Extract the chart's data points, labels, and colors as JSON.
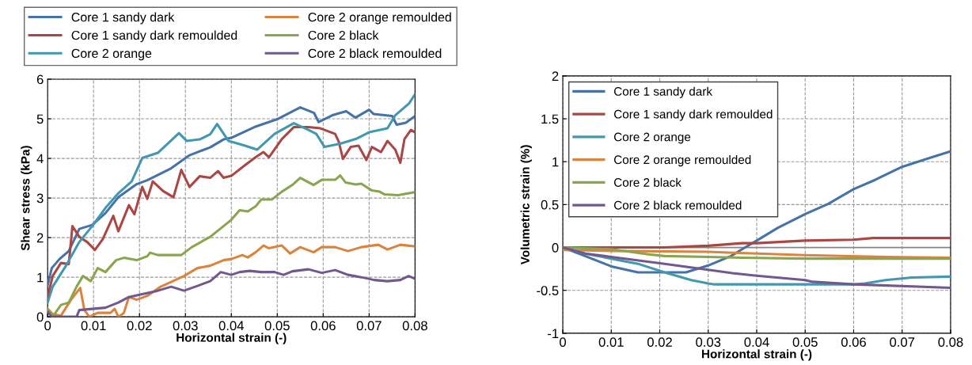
{
  "chart_data": [
    {
      "type": "line",
      "xlabel": "Horizontal strain (-)",
      "ylabel": "Shear stress (kPa)",
      "xlim": [
        0,
        0.08
      ],
      "ylim": [
        0,
        6
      ],
      "xticks": [
        0,
        0.01,
        0.02,
        0.03,
        0.04,
        0.05,
        0.06,
        0.07,
        0.08
      ],
      "yticks": [
        0,
        1,
        2,
        3,
        4,
        5,
        6
      ],
      "grid": true,
      "legend": "top",
      "marker": "none",
      "line_style": "solid",
      "series": [
        {
          "name": "Core 1 sandy dark",
          "color": "#4572a7",
          "x": [
            0,
            0.0009,
            0.0026,
            0.0046,
            0.0069,
            0.0097,
            0.0126,
            0.0154,
            0.0194,
            0.0217,
            0.0269,
            0.0309,
            0.0354,
            0.0383,
            0.04,
            0.045,
            0.05,
            0.055,
            0.058,
            0.059,
            0.062,
            0.065,
            0.067,
            0.07,
            0.071,
            0.075,
            0.076,
            0.078,
            0.08
          ],
          "values": [
            0.8,
            1.23,
            1.46,
            1.66,
            2.22,
            2.32,
            2.62,
            3.02,
            3.35,
            3.45,
            3.75,
            4.08,
            4.28,
            4.48,
            4.52,
            4.79,
            4.99,
            5.29,
            5.15,
            4.92,
            5.09,
            5.19,
            5.03,
            5.23,
            5.12,
            5.07,
            4.85,
            4.9,
            5.07
          ]
        },
        {
          "name": "Core 1 sandy dark remoulded",
          "color": "#aa4643",
          "x": [
            0,
            0.0011,
            0.0029,
            0.0046,
            0.0054,
            0.0069,
            0.0086,
            0.0103,
            0.012,
            0.0143,
            0.0154,
            0.0177,
            0.0189,
            0.0206,
            0.0217,
            0.0229,
            0.0251,
            0.0274,
            0.0291,
            0.0309,
            0.0331,
            0.0354,
            0.0371,
            0.0383,
            0.04,
            0.043,
            0.0453,
            0.047,
            0.0482,
            0.051,
            0.0536,
            0.0568,
            0.0594,
            0.0626,
            0.0634,
            0.0643,
            0.066,
            0.0677,
            0.0694,
            0.0706,
            0.0726,
            0.074,
            0.0757,
            0.0768,
            0.0777,
            0.0791,
            0.08
          ],
          "values": [
            0.5,
            1.03,
            1.36,
            1.33,
            2.29,
            2.02,
            1.89,
            1.69,
            1.96,
            2.55,
            2.16,
            2.82,
            2.59,
            3.28,
            2.98,
            3.42,
            3.18,
            3.02,
            3.71,
            3.28,
            3.55,
            3.51,
            3.68,
            3.51,
            3.56,
            3.83,
            4.03,
            4.16,
            4.03,
            4.49,
            4.79,
            4.79,
            4.76,
            4.62,
            4.42,
            3.99,
            4.29,
            4.32,
            3.96,
            4.29,
            4.16,
            4.44,
            4.22,
            3.89,
            4.49,
            4.72,
            4.66
          ]
        },
        {
          "name": "Core 2 orange",
          "color": "#4198af",
          "x": [
            0,
            0.0011,
            0.004,
            0.0069,
            0.0097,
            0.0126,
            0.0154,
            0.0183,
            0.0206,
            0.024,
            0.0286,
            0.0303,
            0.0331,
            0.0354,
            0.0369,
            0.0394,
            0.043,
            0.0456,
            0.0494,
            0.0536,
            0.0568,
            0.0585,
            0.0603,
            0.0637,
            0.0671,
            0.07,
            0.074,
            0.0757,
            0.0787,
            0.08
          ],
          "values": [
            0.36,
            0.76,
            1.29,
            1.89,
            2.29,
            2.75,
            3.12,
            3.42,
            4.01,
            4.14,
            4.64,
            4.44,
            4.48,
            4.61,
            4.87,
            4.44,
            4.32,
            4.22,
            4.62,
            4.89,
            4.72,
            4.62,
            4.29,
            4.37,
            4.49,
            4.66,
            4.76,
            5.09,
            5.39,
            5.62
          ]
        },
        {
          "name": "Core 2 orange remoulded",
          "color": "#db843d",
          "x": [
            0,
            0.0011,
            0.0029,
            0.0051,
            0.0069,
            0.0071,
            0.008,
            0.0091,
            0.0109,
            0.0137,
            0.0146,
            0.0154,
            0.0166,
            0.0177,
            0.0194,
            0.0217,
            0.0246,
            0.0297,
            0.0326,
            0.0354,
            0.0383,
            0.04,
            0.0424,
            0.0436,
            0.0453,
            0.047,
            0.0482,
            0.051,
            0.0528,
            0.055,
            0.0579,
            0.0597,
            0.0626,
            0.0654,
            0.0683,
            0.072,
            0.074,
            0.0768,
            0.08
          ],
          "values": [
            0.2,
            0.07,
            0.03,
            0.43,
            0.7,
            0.73,
            0.17,
            0,
            0.1,
            0.1,
            0.2,
            0,
            0.1,
            0.5,
            0.43,
            0.53,
            0.76,
            1.03,
            1.23,
            1.29,
            1.43,
            1.46,
            1.56,
            1.5,
            1.63,
            1.8,
            1.73,
            1.8,
            1.6,
            1.76,
            1.63,
            1.76,
            1.76,
            1.66,
            1.76,
            1.82,
            1.7,
            1.82,
            1.78
          ]
        },
        {
          "name": "Core 2 black",
          "color": "#89a54e",
          "x": [
            0,
            0.0011,
            0.0029,
            0.0046,
            0.0063,
            0.0077,
            0.0094,
            0.0109,
            0.0126,
            0.0149,
            0.0166,
            0.0194,
            0.0217,
            0.0223,
            0.024,
            0.0291,
            0.0314,
            0.0354,
            0.0383,
            0.04,
            0.0418,
            0.0436,
            0.0453,
            0.0465,
            0.0488,
            0.051,
            0.0533,
            0.055,
            0.0579,
            0.0597,
            0.0626,
            0.0637,
            0.0649,
            0.0671,
            0.0683,
            0.0706,
            0.0723,
            0.0734,
            0.0763,
            0.08
          ],
          "values": [
            0.2,
            0,
            0.3,
            0.36,
            0.76,
            1.03,
            0.9,
            1.23,
            1.13,
            1.43,
            1.49,
            1.43,
            1.53,
            1.62,
            1.56,
            1.56,
            1.76,
            2.02,
            2.29,
            2.45,
            2.69,
            2.66,
            2.79,
            2.96,
            2.96,
            3.16,
            3.33,
            3.51,
            3.33,
            3.46,
            3.46,
            3.57,
            3.39,
            3.34,
            3.36,
            3.19,
            3.16,
            3.09,
            3.07,
            3.15
          ]
        },
        {
          "name": "Core 2 black remoulded",
          "color": "#71588f",
          "x": [
            0,
            0.0009,
            0.0063,
            0.0069,
            0.0097,
            0.0126,
            0.0154,
            0.0177,
            0.02,
            0.024,
            0.0269,
            0.0297,
            0.0331,
            0.0354,
            0.0377,
            0.04,
            0.0418,
            0.044,
            0.0465,
            0.0494,
            0.0514,
            0.0533,
            0.0568,
            0.0597,
            0.0626,
            0.0654,
            0.0683,
            0.0711,
            0.074,
            0.0768,
            0.0786,
            0.08
          ],
          "values": [
            0.13,
            0,
            0,
            0.17,
            0.2,
            0.23,
            0.36,
            0.5,
            0.56,
            0.66,
            0.76,
            0.66,
            0.8,
            0.9,
            1.13,
            1.06,
            1.13,
            1.16,
            1.13,
            1.13,
            1.06,
            1.15,
            1.2,
            1.11,
            1.18,
            1.06,
            1.0,
            0.93,
            0.9,
            0.93,
            1.03,
            0.96
          ]
        }
      ]
    },
    {
      "type": "line",
      "xlabel": "Horizontal strain (-)",
      "ylabel": "Volumetric strain (%)",
      "xlim": [
        0,
        0.08
      ],
      "ylim": [
        -1,
        2
      ],
      "xticks": [
        0,
        0.01,
        0.02,
        0.03,
        0.04,
        0.05,
        0.06,
        0.07,
        0.08
      ],
      "yticks": [
        -1,
        -0.5,
        0,
        0.5,
        1,
        1.5,
        2
      ],
      "grid": true,
      "legend": "top left",
      "marker": "none",
      "line_style": "solid",
      "ref_lines": [
        {
          "axis": "y",
          "value": 0,
          "color": "#868686"
        }
      ],
      "series": [
        {
          "name": "Core 1 sandy dark",
          "color": "#4572a7",
          "x": [
            0,
            0.0046,
            0.01,
            0.0155,
            0.0254,
            0.03,
            0.0347,
            0.037,
            0.04,
            0.0444,
            0.05,
            0.0548,
            0.06,
            0.0645,
            0.07,
            0.0749,
            0.08
          ],
          "values": [
            0,
            -0.1,
            -0.22,
            -0.29,
            -0.29,
            -0.21,
            -0.1,
            -0.02,
            0.08,
            0.23,
            0.39,
            0.51,
            0.68,
            0.79,
            0.94,
            1.03,
            1.12
          ]
        },
        {
          "name": "Core 1 sandy dark remoulded",
          "color": "#aa4643",
          "x": [
            0,
            0.021,
            0.03,
            0.037,
            0.04,
            0.05,
            0.06,
            0.064,
            0.08
          ],
          "values": [
            0,
            0,
            0.02,
            0.05,
            0.05,
            0.08,
            0.09,
            0.11,
            0.11
          ]
        },
        {
          "name": "Core 2 orange",
          "color": "#4198af",
          "x": [
            0,
            0.0046,
            0.01,
            0.0155,
            0.021,
            0.0265,
            0.03,
            0.0313,
            0.06,
            0.0623,
            0.0666,
            0.072,
            0.08
          ],
          "values": [
            0,
            -0.07,
            -0.13,
            -0.19,
            -0.29,
            -0.38,
            -0.42,
            -0.43,
            -0.43,
            -0.42,
            -0.38,
            -0.35,
            -0.34
          ]
        },
        {
          "name": "Core 2 orange remoulded",
          "color": "#db843d",
          "x": [
            0,
            0.01,
            0.03,
            0.034,
            0.05,
            0.0667,
            0.08
          ],
          "values": [
            -0.03,
            -0.04,
            -0.05,
            -0.06,
            -0.09,
            -0.11,
            -0.12
          ]
        },
        {
          "name": "Core 2 black",
          "color": "#89a54e",
          "x": [
            0,
            0.01,
            0.0177,
            0.021,
            0.03,
            0.037,
            0.05,
            0.08
          ],
          "values": [
            0,
            -0.02,
            -0.08,
            -0.1,
            -0.11,
            -0.12,
            -0.13,
            -0.13
          ]
        },
        {
          "name": "Core 2 black remoulded",
          "color": "#71588f",
          "x": [
            0,
            0.0046,
            0.01,
            0.021,
            0.03,
            0.035,
            0.04,
            0.05,
            0.0515,
            0.06,
            0.08
          ],
          "values": [
            0,
            -0.07,
            -0.11,
            -0.19,
            -0.26,
            -0.3,
            -0.33,
            -0.38,
            -0.4,
            -0.43,
            -0.47
          ]
        }
      ]
    }
  ]
}
